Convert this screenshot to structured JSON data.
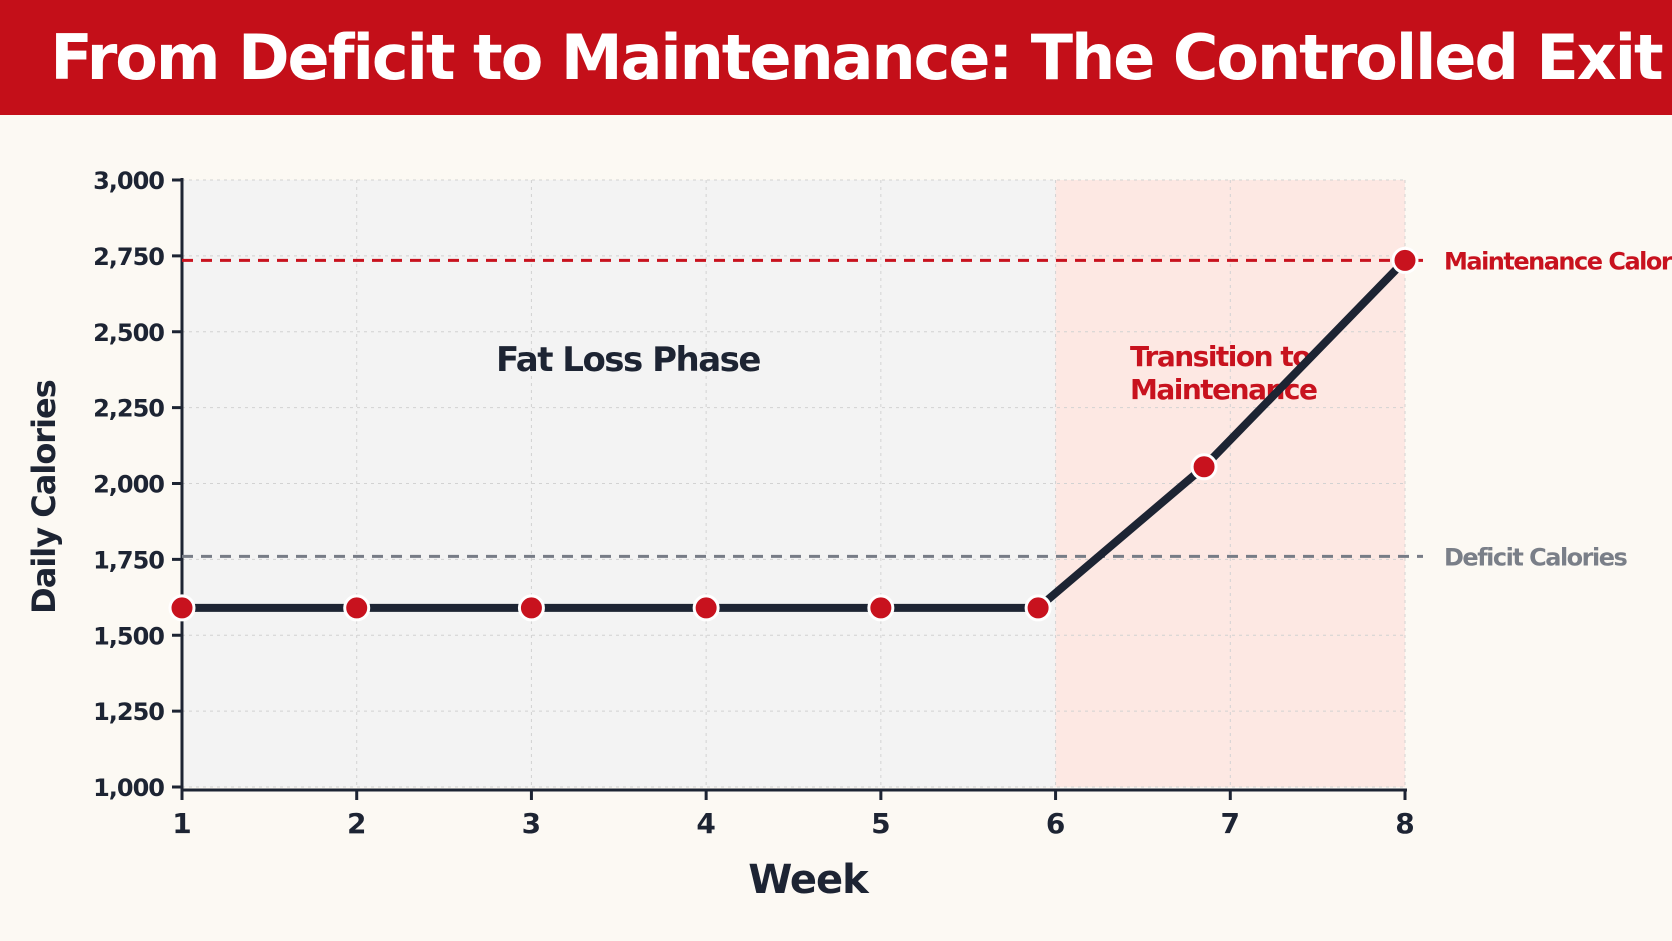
{
  "title": "From Deficit to Maintenance: The Controlled Exit",
  "colors": {
    "title_bar": "#c40f19",
    "accent_red": "#c8121e",
    "line": "#1d2433",
    "deficit_line": "#777c86",
    "deficit_label": "#7a7f88",
    "fat_loss_shade": "#f3f3f3",
    "transition_shade": "#fde8e3",
    "background": "#fcf9f3"
  },
  "chart_data": {
    "type": "line",
    "title": "From Deficit to Maintenance: The Controlled Exit",
    "xlabel": "Week",
    "ylabel": "Daily Calories",
    "x_ticks": [
      1,
      2,
      3,
      4,
      5,
      6,
      7,
      8
    ],
    "x_tick_labels": [
      "1",
      "2",
      "3",
      "4",
      "5",
      "6",
      "7",
      "8"
    ],
    "xlim": [
      1,
      8
    ],
    "ylim": [
      1000,
      3000
    ],
    "y_ticks": [
      1000,
      1250,
      1500,
      1750,
      2000,
      2250,
      2500,
      2750,
      3000
    ],
    "y_tick_labels": [
      "1,000",
      "1,250",
      "1,500",
      "1,750",
      "2,000",
      "2,250",
      "2,500",
      "2,750",
      "3,000"
    ],
    "grid": true,
    "series": [
      {
        "x": [
          1,
          2,
          3,
          4,
          5,
          5.9,
          6.85,
          8
        ],
        "y": [
          1590,
          1590,
          1590,
          1590,
          1590,
          1590,
          2055,
          2735
        ]
      }
    ],
    "reference_lines": [
      {
        "label": "Maintenance Calories",
        "y": 2735,
        "style": "dashed",
        "color": "#c8121e"
      },
      {
        "label": "Deficit Calories",
        "y": 1760,
        "style": "dashed",
        "color": "#777c86"
      }
    ],
    "regions": [
      {
        "label": "Fat Loss Phase",
        "x_start": 1,
        "x_end": 6
      },
      {
        "label_lines": [
          "Transition to",
          "Maintenance"
        ],
        "x_start": 6,
        "x_end": 8
      }
    ]
  }
}
